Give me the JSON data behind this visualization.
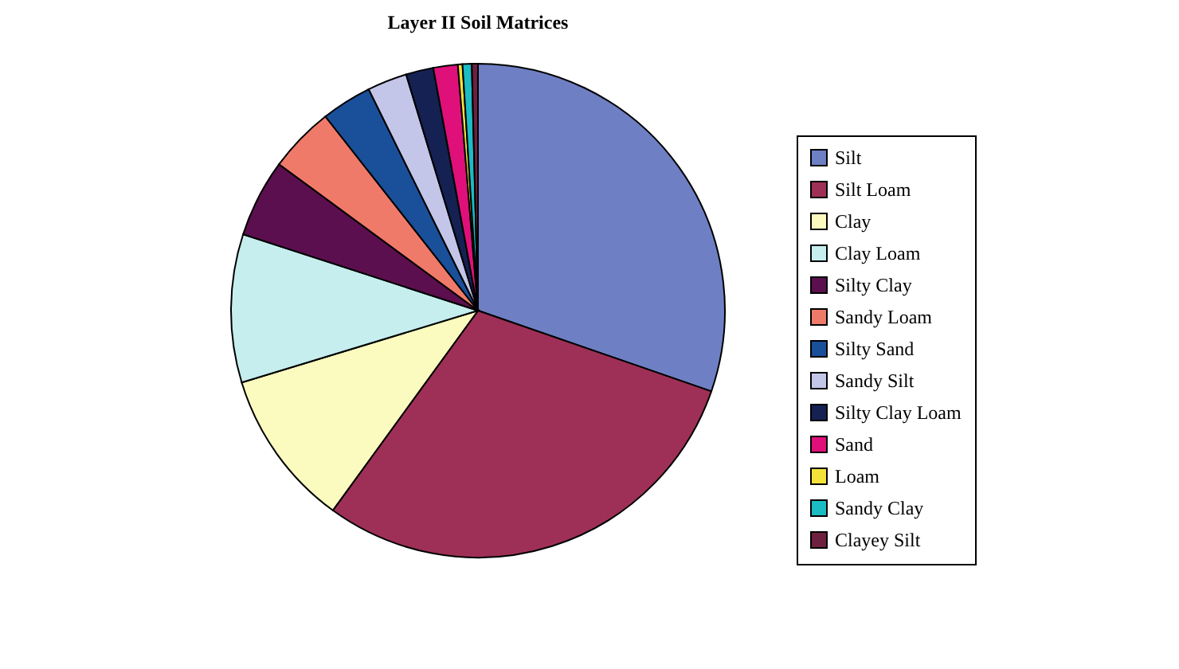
{
  "chart_data": {
    "type": "pie",
    "title": "Layer II Soil Matrices",
    "categories": [
      "Silt",
      "Silt Loam",
      "Clay",
      "Clay Loam",
      "Silty Clay",
      "Sandy Loam",
      "Silty Sand",
      "Sandy Silt",
      "Silty Clay Loam",
      "Sand",
      "Loam",
      "Sandy Clay",
      "Clayey Silt"
    ],
    "values": [
      30.3,
      29.7,
      10.3,
      9.7,
      5.1,
      4.3,
      3.3,
      2.6,
      1.8,
      1.6,
      0.3,
      0.6,
      0.4
    ],
    "colors": [
      "#6f7fc4",
      "#9e3057",
      "#fbfbc0",
      "#c6eeee",
      "#5c0f4e",
      "#f07a6a",
      "#1a4f9a",
      "#c3c6e8",
      "#142152",
      "#e0107a",
      "#f2e23a",
      "#1bbcc4",
      "#6e2040"
    ],
    "legend": "right"
  }
}
